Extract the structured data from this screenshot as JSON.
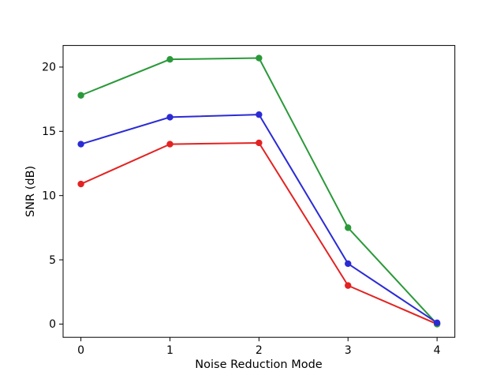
{
  "figure": {
    "background": "#ffffff",
    "frame_color": "#000000"
  },
  "chart_data": {
    "type": "line",
    "title": "",
    "xlabel": "Noise Reduction Mode",
    "ylabel": "SNR (dB)",
    "x": [
      0,
      1,
      2,
      3,
      4
    ],
    "xticks": [
      "0",
      "1",
      "2",
      "3",
      "4"
    ],
    "yticks": [
      "0",
      "5",
      "10",
      "15",
      "20"
    ],
    "ytick_values": [
      0,
      5,
      10,
      15,
      20
    ],
    "xtick_values": [
      0,
      1,
      2,
      3,
      4
    ],
    "xlim": [
      -0.2,
      4.2
    ],
    "ylim": [
      -1.03,
      21.68
    ],
    "grid": false,
    "legend": "none",
    "marker": "circle",
    "series": [
      {
        "name": "red",
        "color": "#e32222",
        "values": [
          10.9,
          14.0,
          14.1,
          3.0,
          0.0
        ]
      },
      {
        "name": "green",
        "color": "#2a9939",
        "values": [
          17.8,
          20.6,
          20.7,
          7.5,
          0.0
        ]
      },
      {
        "name": "blue",
        "color": "#2b2bd5",
        "values": [
          14.0,
          16.1,
          16.3,
          4.7,
          0.1
        ]
      }
    ]
  }
}
